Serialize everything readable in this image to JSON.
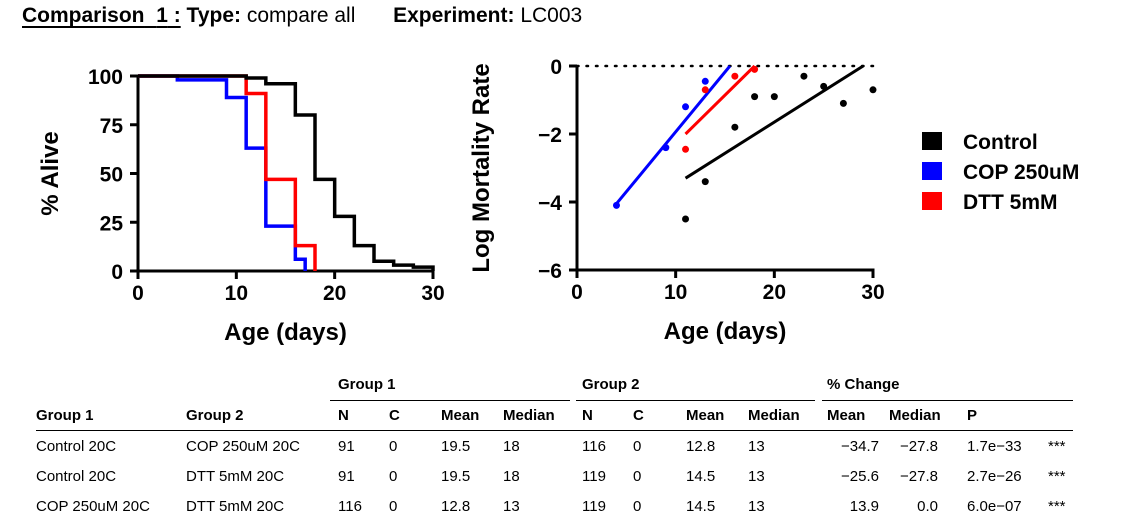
{
  "header": {
    "comparison_label": "Comparison",
    "comparison_number": "1",
    "type_label": "Type:",
    "type_value": "compare all",
    "experiment_label": "Experiment:",
    "experiment_value": "LC003"
  },
  "chart_data": [
    {
      "type": "line",
      "step": true,
      "xlabel": "Age (days)",
      "ylabel": "% Alive",
      "xlim": [
        0,
        30
      ],
      "ylim": [
        0,
        100
      ],
      "xticks": [
        0,
        10,
        20,
        30
      ],
      "yticks": [
        0,
        25,
        50,
        75,
        100
      ],
      "series": [
        {
          "name": "Control",
          "color": "#000000",
          "x": [
            0,
            11,
            13,
            16,
            18,
            20,
            22,
            24,
            26,
            28,
            30
          ],
          "y": [
            100,
            99,
            96,
            80,
            47,
            28,
            13,
            5,
            3,
            2,
            0
          ]
        },
        {
          "name": "COP 250uM",
          "color": "#0000ff",
          "x": [
            0,
            4,
            9,
            11,
            13,
            16,
            17
          ],
          "y": [
            100,
            98,
            89,
            63,
            23,
            6,
            0
          ]
        },
        {
          "name": "DTT 5mM",
          "color": "#ff0000",
          "x": [
            0,
            11,
            13,
            16,
            18
          ],
          "y": [
            100,
            91,
            47,
            13,
            0
          ]
        }
      ]
    },
    {
      "type": "scatter",
      "xlabel": "Age (days)",
      "ylabel": "Log Mortality Rate",
      "xlim": [
        0,
        30
      ],
      "ylim": [
        -6,
        0
      ],
      "xticks": [
        0,
        10,
        20,
        30
      ],
      "yticks": [
        0,
        -2,
        -4,
        -6
      ],
      "series": [
        {
          "name": "Control",
          "color": "#000000",
          "points": [
            [
              11,
              -4.5
            ],
            [
              13,
              -3.4
            ],
            [
              16,
              -1.8
            ],
            [
              18,
              -0.9
            ],
            [
              20,
              -0.9
            ],
            [
              23,
              -0.3
            ],
            [
              25,
              -0.6
            ],
            [
              27,
              -1.1
            ],
            [
              30,
              -0.7
            ]
          ],
          "fit": [
            [
              11,
              -3.3
            ],
            [
              29,
              0
            ]
          ]
        },
        {
          "name": "COP 250uM",
          "color": "#0000ff",
          "points": [
            [
              4,
              -4.1
            ],
            [
              9,
              -2.4
            ],
            [
              11,
              -1.2
            ],
            [
              13,
              -0.45
            ]
          ],
          "fit": [
            [
              4,
              -4.05
            ],
            [
              15.5,
              0
            ]
          ]
        },
        {
          "name": "DTT 5mM",
          "color": "#ff0000",
          "points": [
            [
              11,
              -2.45
            ],
            [
              13,
              -0.7
            ],
            [
              16,
              -0.3
            ],
            [
              18,
              -0.1
            ]
          ],
          "fit": [
            [
              11,
              -2.0
            ],
            [
              18,
              0
            ]
          ]
        }
      ]
    }
  ],
  "legend": [
    {
      "label": "Control",
      "color": "#000000"
    },
    {
      "label": "COP 250uM",
      "color": "#0000ff"
    },
    {
      "label": "DTT 5mM",
      "color": "#ff0000"
    }
  ],
  "stats_table": {
    "group_headers": [
      "Group 1",
      "Group 2",
      "% Change"
    ],
    "columns": [
      "Group 1",
      "Group 2",
      "N",
      "C",
      "Mean",
      "Median",
      "N",
      "C",
      "Mean",
      "Median",
      "Mean",
      "Median",
      "P"
    ],
    "rows": [
      [
        "Control 20C",
        "COP 250uM 20C",
        "91",
        "0",
        "19.5",
        "18",
        "116",
        "0",
        "12.8",
        "13",
        "−34.7",
        "−27.8",
        "1.7e−33",
        "***"
      ],
      [
        "Control 20C",
        "DTT 5mM 20C",
        "91",
        "0",
        "19.5",
        "18",
        "119",
        "0",
        "14.5",
        "13",
        "−25.6",
        "−27.8",
        "2.7e−26",
        "***"
      ],
      [
        "COP 250uM 20C",
        "DTT 5mM 20C",
        "116",
        "0",
        "12.8",
        "13",
        "119",
        "0",
        "14.5",
        "13",
        "13.9",
        "0.0",
        "6.0e−07",
        "***"
      ]
    ]
  }
}
